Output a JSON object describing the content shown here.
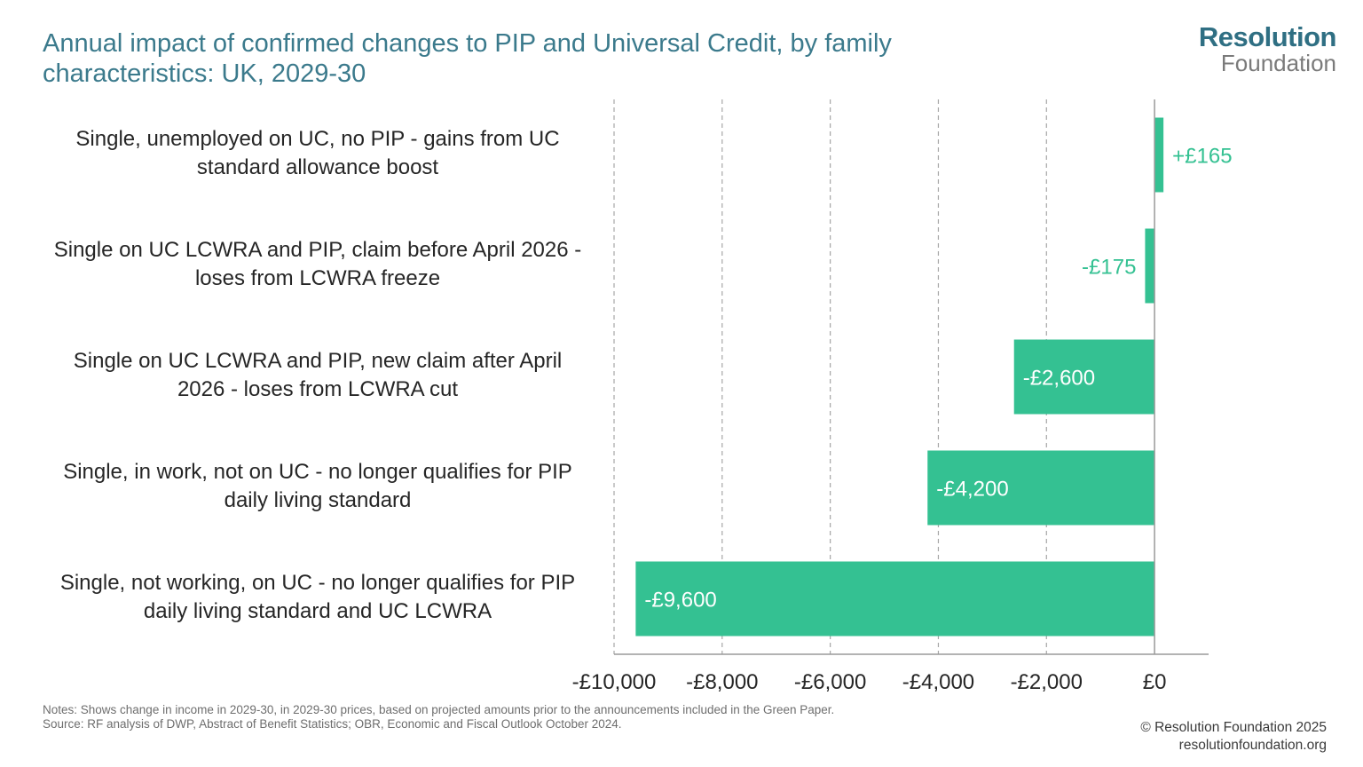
{
  "title": "Annual impact of confirmed changes to PIP and Universal Credit, by family characteristics: UK, 2029-30",
  "logo": {
    "line1": "Resolution",
    "line2": "Foundation"
  },
  "chart_data": {
    "type": "bar",
    "orientation": "horizontal",
    "title": "Annual impact of confirmed changes to PIP and Universal Credit, by family characteristics: UK, 2029-30",
    "categories": [
      "Single, unemployed on UC, no PIP - gains from UC standard allowance boost",
      "Single on UC LCWRA and PIP, claim before April 2026 - loses from LCWRA freeze",
      "Single on UC LCWRA and PIP, new claim after April 2026 - loses from LCWRA cut",
      "Single, in work, not on UC - no longer qualifies for PIP daily living standard",
      "Single, not working, on UC - no longer qualifies for PIP daily living standard and UC LCWRA"
    ],
    "category_lines": [
      [
        "Single, unemployed on UC, no PIP - gains from UC",
        "standard allowance boost"
      ],
      [
        "Single on UC LCWRA and PIP, claim before April 2026 -",
        "loses from LCWRA freeze"
      ],
      [
        "Single on UC LCWRA and PIP, new claim after April",
        "2026 - loses from LCWRA cut"
      ],
      [
        "Single, in work, not on UC - no longer qualifies for PIP",
        "daily living standard"
      ],
      [
        "Single, not working, on UC - no longer qualifies for PIP",
        "daily living standard and UC LCWRA"
      ]
    ],
    "values": [
      165,
      -175,
      -2600,
      -4200,
      -9600
    ],
    "data_labels": [
      "+£165",
      "-£175",
      "-£2,600",
      "-£4,200",
      "-£9,600"
    ],
    "xlim": [
      -10000,
      1000
    ],
    "xticks": [
      -10000,
      -8000,
      -6000,
      -4000,
      -2000,
      0
    ],
    "xtick_labels": [
      "-£10,000",
      "-£8,000",
      "-£6,000",
      "-£4,000",
      "-£2,000",
      "£0"
    ],
    "grid": "vertical dashed",
    "bar_color": "#34c192",
    "label_color_outside": "#34c192",
    "label_color_inside": "#ffffff"
  },
  "notes": {
    "line1": "Notes: Shows change in income in 2029-30, in 2029-30 prices, based on projected amounts prior to the announcements included in the Green Paper.",
    "line2": "Source: RF analysis of DWP, Abstract of Benefit Statistics; OBR, Economic and Fiscal Outlook October 2024."
  },
  "credit": {
    "line1": "© Resolution Foundation 2025",
    "line2": "resolutionfoundation.org"
  }
}
